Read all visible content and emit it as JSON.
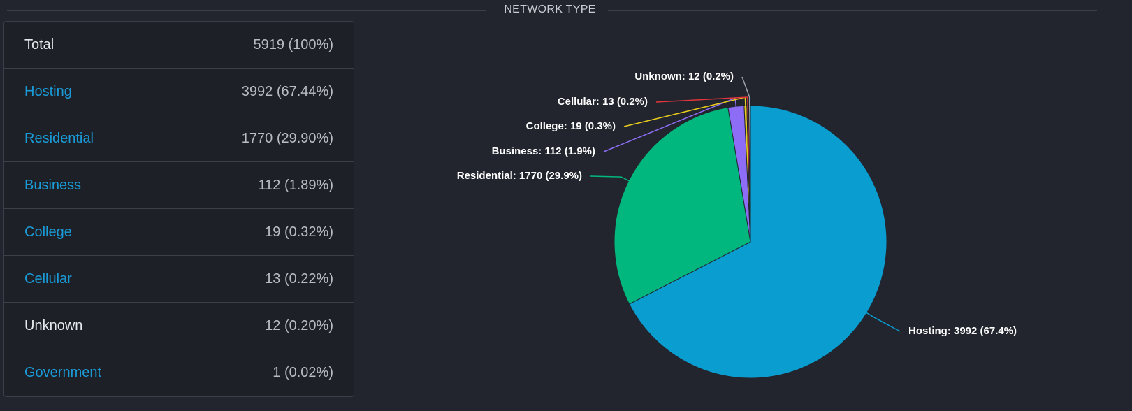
{
  "header": {
    "title": "NETWORK TYPE"
  },
  "table": {
    "rows": [
      {
        "name": "Total",
        "count": "5919 (100%)",
        "link": false
      },
      {
        "name": "Hosting",
        "count": "3992 (67.44%)",
        "link": true
      },
      {
        "name": "Residential",
        "count": "1770 (29.90%)",
        "link": true
      },
      {
        "name": "Business",
        "count": "112 (1.89%)",
        "link": true
      },
      {
        "name": "College",
        "count": "19 (0.32%)",
        "link": true
      },
      {
        "name": "Cellular",
        "count": "13 (0.22%)",
        "link": true
      },
      {
        "name": "Unknown",
        "count": "12 (0.20%)",
        "link": false
      },
      {
        "name": "Government",
        "count": "1 (0.02%)",
        "link": true
      }
    ]
  },
  "chart_data": {
    "type": "pie",
    "categories": [
      "Hosting",
      "Residential",
      "Business",
      "College",
      "Cellular",
      "Unknown"
    ],
    "values": [
      3992,
      1770,
      112,
      19,
      13,
      12
    ],
    "value_labels": [
      "Hosting: 3992 (67.4%)",
      "Residential: 1770 (29.9%)",
      "Business: 112 (1.9%)",
      "College: 19 (0.3%)",
      "Cellular: 13 (0.2%)",
      "Unknown: 12 (0.2%)"
    ],
    "colors": [
      "#0a9dd0",
      "#02b77d",
      "#8d6df6",
      "#e8cc1c",
      "#e0353a",
      "#9ba1aa"
    ]
  }
}
